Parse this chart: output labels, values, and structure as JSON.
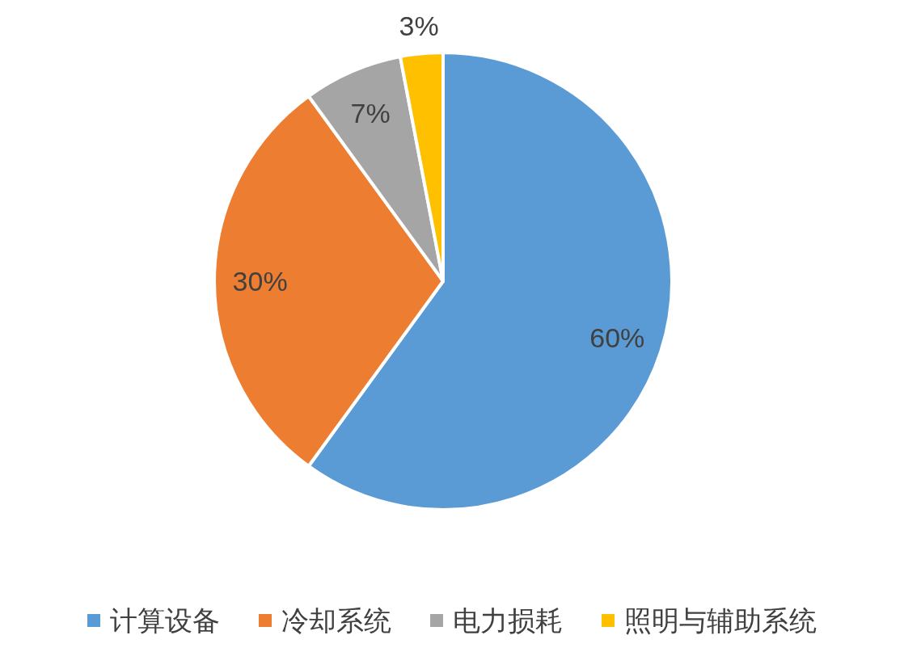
{
  "chart_data": {
    "type": "pie",
    "categories": [
      "计算设备",
      "冷却系统",
      "电力损耗",
      "照明与辅助系统"
    ],
    "values": [
      60,
      30,
      7,
      3
    ],
    "colors": [
      "#5b9bd5",
      "#ed7d31",
      "#a5a5a5",
      "#ffc000"
    ],
    "value_labels": [
      "60%",
      "30%",
      "7%",
      "3%"
    ],
    "legend": "bottom"
  }
}
